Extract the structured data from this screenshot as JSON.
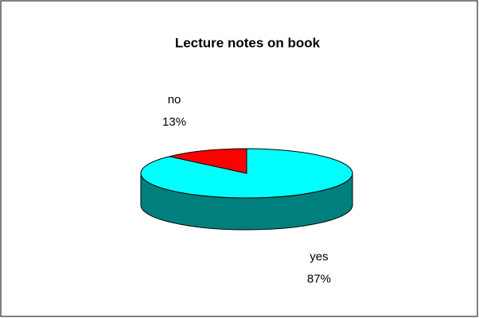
{
  "chart_data": {
    "type": "pie",
    "title": "Lecture notes on book",
    "categories": [
      "yes",
      "no"
    ],
    "values": [
      87,
      13
    ],
    "value_labels": [
      "87%",
      "13%"
    ],
    "colors": [
      "#00ffff",
      "#ff0000"
    ],
    "three_d": true
  }
}
